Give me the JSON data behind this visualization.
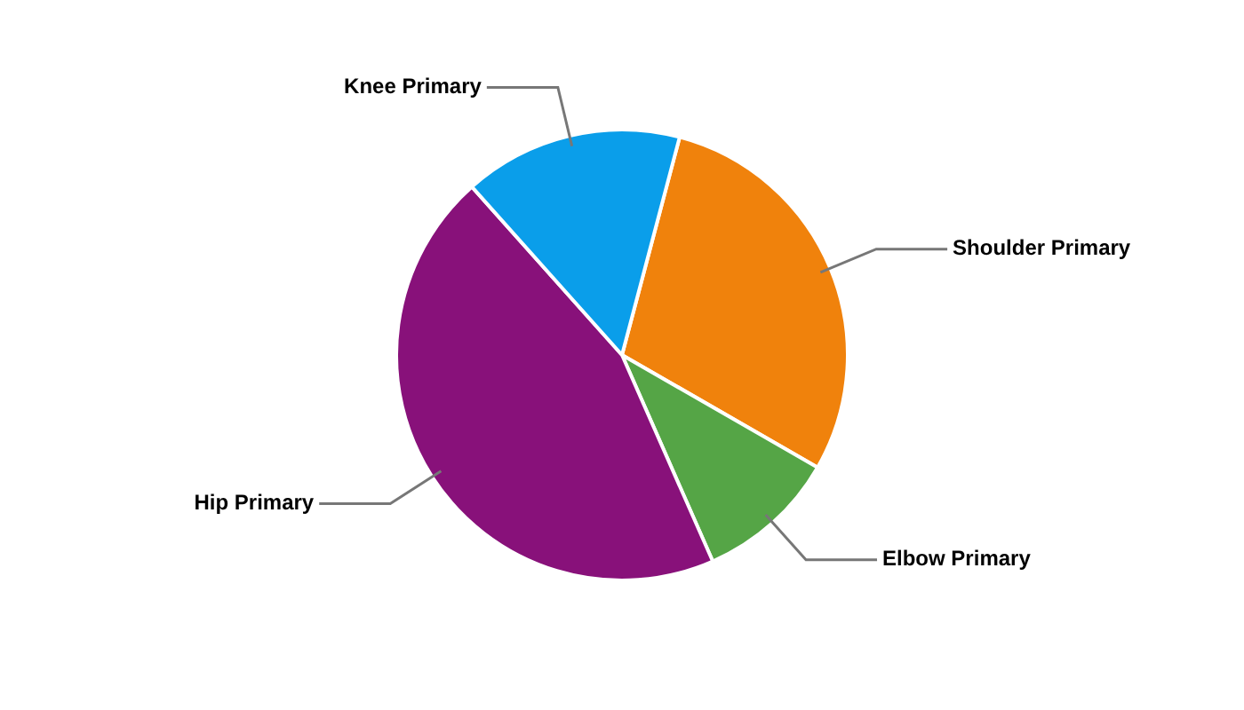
{
  "chart_data": {
    "type": "pie",
    "categories": [
      "Shoulder Primary",
      "Elbow Primary",
      "Hip Primary",
      "Knee Primary"
    ],
    "values": [
      29.2,
      10.1,
      45.0,
      15.7
    ],
    "colors": [
      "#f0820c",
      "#55a546",
      "#88117a",
      "#0a9eea"
    ],
    "legend": false
  }
}
